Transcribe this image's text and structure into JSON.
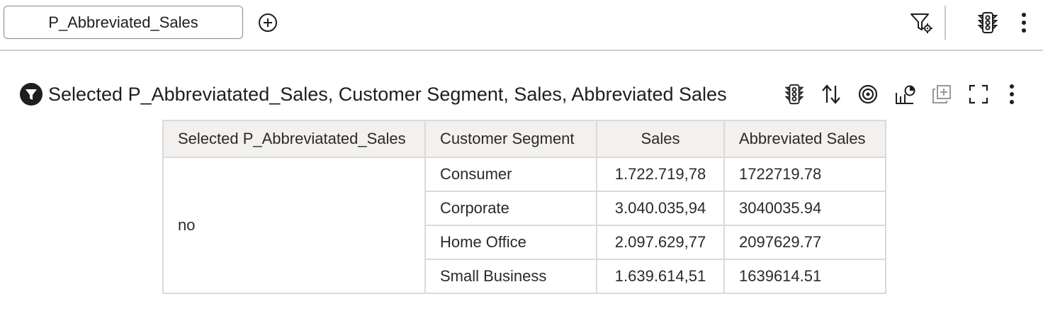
{
  "topbar": {
    "parameter_label": "P_Abbreviated_Sales",
    "icons": [
      "add-circle-icon",
      "filter-settings-icon",
      "traffic-light-icon",
      "kebab-icon"
    ]
  },
  "viz": {
    "title": "Selected P_Abbreviatated_Sales, Customer Segment, Sales, Abbreviated Sales",
    "icons": [
      "filter-badge-icon",
      "traffic-light-icon",
      "sort-icon",
      "target-icon",
      "chart-settings-icon",
      "duplicate-icon",
      "fullscreen-icon",
      "kebab-icon"
    ]
  },
  "table": {
    "headers": [
      "Selected P_Abbreviatated_Sales",
      "Customer Segment",
      "Sales",
      "Abbreviated Sales"
    ],
    "group_value": "no",
    "rows": [
      {
        "segment": "Consumer",
        "sales": "1.722.719,78",
        "abbreviated": "1722719.78"
      },
      {
        "segment": "Corporate",
        "sales": "3.040.035,94",
        "abbreviated": "3040035.94"
      },
      {
        "segment": "Home Office",
        "sales": "2.097.629,77",
        "abbreviated": "2097629.77"
      },
      {
        "segment": "Small Business",
        "sales": "1.639.614,51",
        "abbreviated": "1639614.51"
      }
    ]
  },
  "colors": {
    "text": "#161513",
    "border": "#dcdad7",
    "header_bg": "#f2f1ef"
  }
}
